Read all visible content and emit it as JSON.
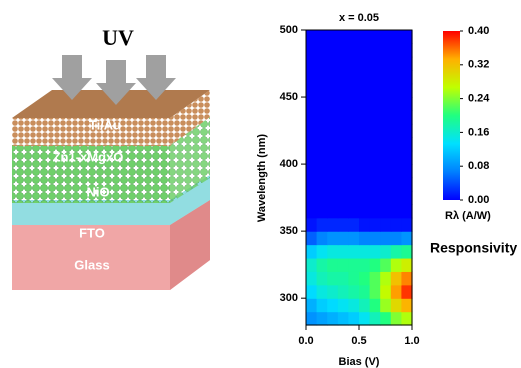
{
  "diagram": {
    "light": "UV",
    "layers": [
      "Ti/Au",
      "Zn1-xMgxO",
      "NiO",
      "FTO",
      "Glass"
    ]
  },
  "chart_data": {
    "type": "heatmap",
    "title": "x = 0.05",
    "xlabel": "Bias (V)",
    "ylabel": "Wavelength (nm)",
    "x": [
      0.05,
      0.15,
      0.25,
      0.35,
      0.45,
      0.55,
      0.65,
      0.75,
      0.85,
      0.95
    ],
    "y": [
      285,
      295,
      305,
      315,
      325,
      335,
      345,
      355,
      365,
      375,
      385,
      395,
      405,
      415,
      425,
      435,
      445,
      455,
      465,
      475,
      485,
      495
    ],
    "z": [
      [
        0.08,
        0.09,
        0.1,
        0.11,
        0.12,
        0.14,
        0.17,
        0.2,
        0.24,
        0.26
      ],
      [
        0.1,
        0.12,
        0.13,
        0.14,
        0.15,
        0.17,
        0.2,
        0.25,
        0.3,
        0.33
      ],
      [
        0.13,
        0.15,
        0.16,
        0.17,
        0.18,
        0.19,
        0.22,
        0.27,
        0.34,
        0.38
      ],
      [
        0.15,
        0.17,
        0.18,
        0.18,
        0.19,
        0.2,
        0.22,
        0.26,
        0.32,
        0.35
      ],
      [
        0.16,
        0.18,
        0.19,
        0.19,
        0.19,
        0.19,
        0.2,
        0.22,
        0.26,
        0.28
      ],
      [
        0.12,
        0.14,
        0.15,
        0.15,
        0.15,
        0.15,
        0.15,
        0.16,
        0.18,
        0.19
      ],
      [
        0.05,
        0.07,
        0.08,
        0.08,
        0.08,
        0.07,
        0.07,
        0.07,
        0.07,
        0.08
      ],
      [
        0.01,
        0.02,
        0.02,
        0.02,
        0.02,
        0.01,
        0.01,
        0.01,
        0.01,
        0.01
      ],
      [
        0,
        0,
        0,
        0,
        0,
        0,
        0,
        0,
        0,
        0
      ],
      [
        0,
        0,
        0,
        0,
        0,
        0,
        0,
        0,
        0,
        0
      ],
      [
        0,
        0,
        0,
        0,
        0,
        0,
        0,
        0,
        0,
        0
      ],
      [
        0,
        0,
        0,
        0,
        0,
        0,
        0,
        0,
        0,
        0
      ],
      [
        0,
        0,
        0,
        0,
        0,
        0,
        0,
        0,
        0,
        0
      ],
      [
        0,
        0,
        0,
        0,
        0,
        0,
        0,
        0,
        0,
        0
      ],
      [
        0,
        0,
        0,
        0,
        0,
        0,
        0,
        0,
        0,
        0
      ],
      [
        0,
        0,
        0,
        0,
        0,
        0,
        0,
        0,
        0,
        0
      ],
      [
        0,
        0,
        0,
        0,
        0,
        0,
        0,
        0,
        0,
        0
      ],
      [
        0,
        0,
        0,
        0,
        0,
        0,
        0,
        0,
        0,
        0
      ],
      [
        0,
        0,
        0,
        0,
        0,
        0,
        0,
        0,
        0,
        0
      ],
      [
        0,
        0,
        0,
        0,
        0,
        0,
        0,
        0,
        0,
        0
      ],
      [
        0,
        0,
        0,
        0,
        0,
        0,
        0,
        0,
        0,
        0
      ],
      [
        0,
        0,
        0,
        0,
        0,
        0,
        0,
        0,
        0,
        0
      ]
    ],
    "xlim": [
      0,
      1
    ],
    "ylim": [
      280,
      500
    ],
    "xticks": [
      {
        "value": 0,
        "label": "0.0"
      },
      0.5,
      {
        "value": 1,
        "label": "1.0"
      }
    ],
    "yticks": [
      300,
      350,
      400,
      450,
      500
    ],
    "clim": [
      0,
      0.4
    ],
    "cticks": [
      {
        "value": 0,
        "label": "0.00"
      },
      0.08,
      0.16,
      0.24,
      0.32,
      {
        "value": 0.4,
        "label": "0.40"
      }
    ],
    "colormap": [
      "#0000ff",
      "#0080ff",
      "#00e0ff",
      "#20ff80",
      "#c0ff00",
      "#ffb000",
      "#ff0000"
    ],
    "colorbar_label": "Rλ (A/W)",
    "annotation": "Responsivity"
  }
}
